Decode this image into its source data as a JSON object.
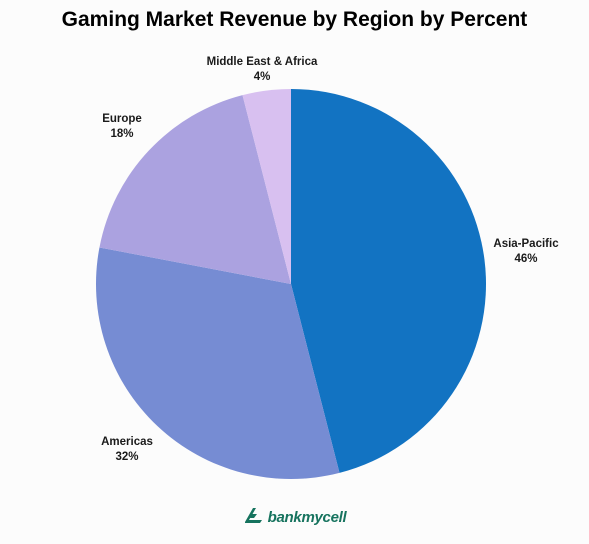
{
  "chart_data": {
    "type": "pie",
    "title": "Gaming Market Revenue by Region by Percent",
    "categories": [
      "Asia-Pacific",
      "Americas",
      "Europe",
      "Middle East & Africa"
    ],
    "values": [
      46,
      32,
      18,
      4
    ],
    "value_labels": [
      "46%",
      "32%",
      "18%",
      "4%"
    ],
    "colors": [
      "#1273c2",
      "#768cd3",
      "#aba2e0",
      "#d8c0f0"
    ],
    "start_angle_deg": 0,
    "direction": "clockwise",
    "legend": "none"
  },
  "brand": {
    "name": "bankmycell",
    "color": "#16735e",
    "icon": "bankmycell-logo-icon"
  }
}
